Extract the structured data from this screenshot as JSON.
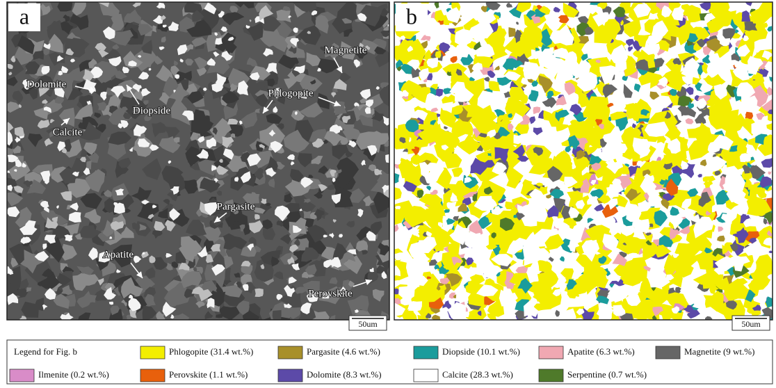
{
  "panels": [
    {
      "label": "a",
      "scale_bar": "50um",
      "annotations": [
        "Magnetite",
        "Dolomite",
        "Phlogopite",
        "Diopside",
        "Calcite",
        "Pargasite",
        "Apatite",
        "Perovskite"
      ]
    },
    {
      "label": "b",
      "scale_bar": "50um"
    }
  ],
  "legend": {
    "title": "Legend for Fig. b",
    "items": [
      {
        "label": "Phlogopite (31.4 wt.%)",
        "color": "#f3ee00"
      },
      {
        "label": "Pargasite (4.6 wt.%)",
        "color": "#a8902a"
      },
      {
        "label": "Diopside (10.1 wt.%)",
        "color": "#1b9c9c"
      },
      {
        "label": "Apatite (6.3 wt.%)",
        "color": "#f0a8b2"
      },
      {
        "label": "Magnetite (9 wt.%)",
        "color": "#666666"
      },
      {
        "label": "Ilmenite (0.2 wt.%)",
        "color": "#d98cc8"
      },
      {
        "label": "Perovskite (1.1 wt.%)",
        "color": "#e8600c"
      },
      {
        "label": "Dolomite (8.3 wt.%)",
        "color": "#5c4aa8"
      },
      {
        "label": "Calcite (28.3 wt.%)",
        "color": "#ffffff"
      },
      {
        "label": "Serpentine (0.7 wt.%)",
        "color": "#4f7a2a"
      }
    ]
  }
}
